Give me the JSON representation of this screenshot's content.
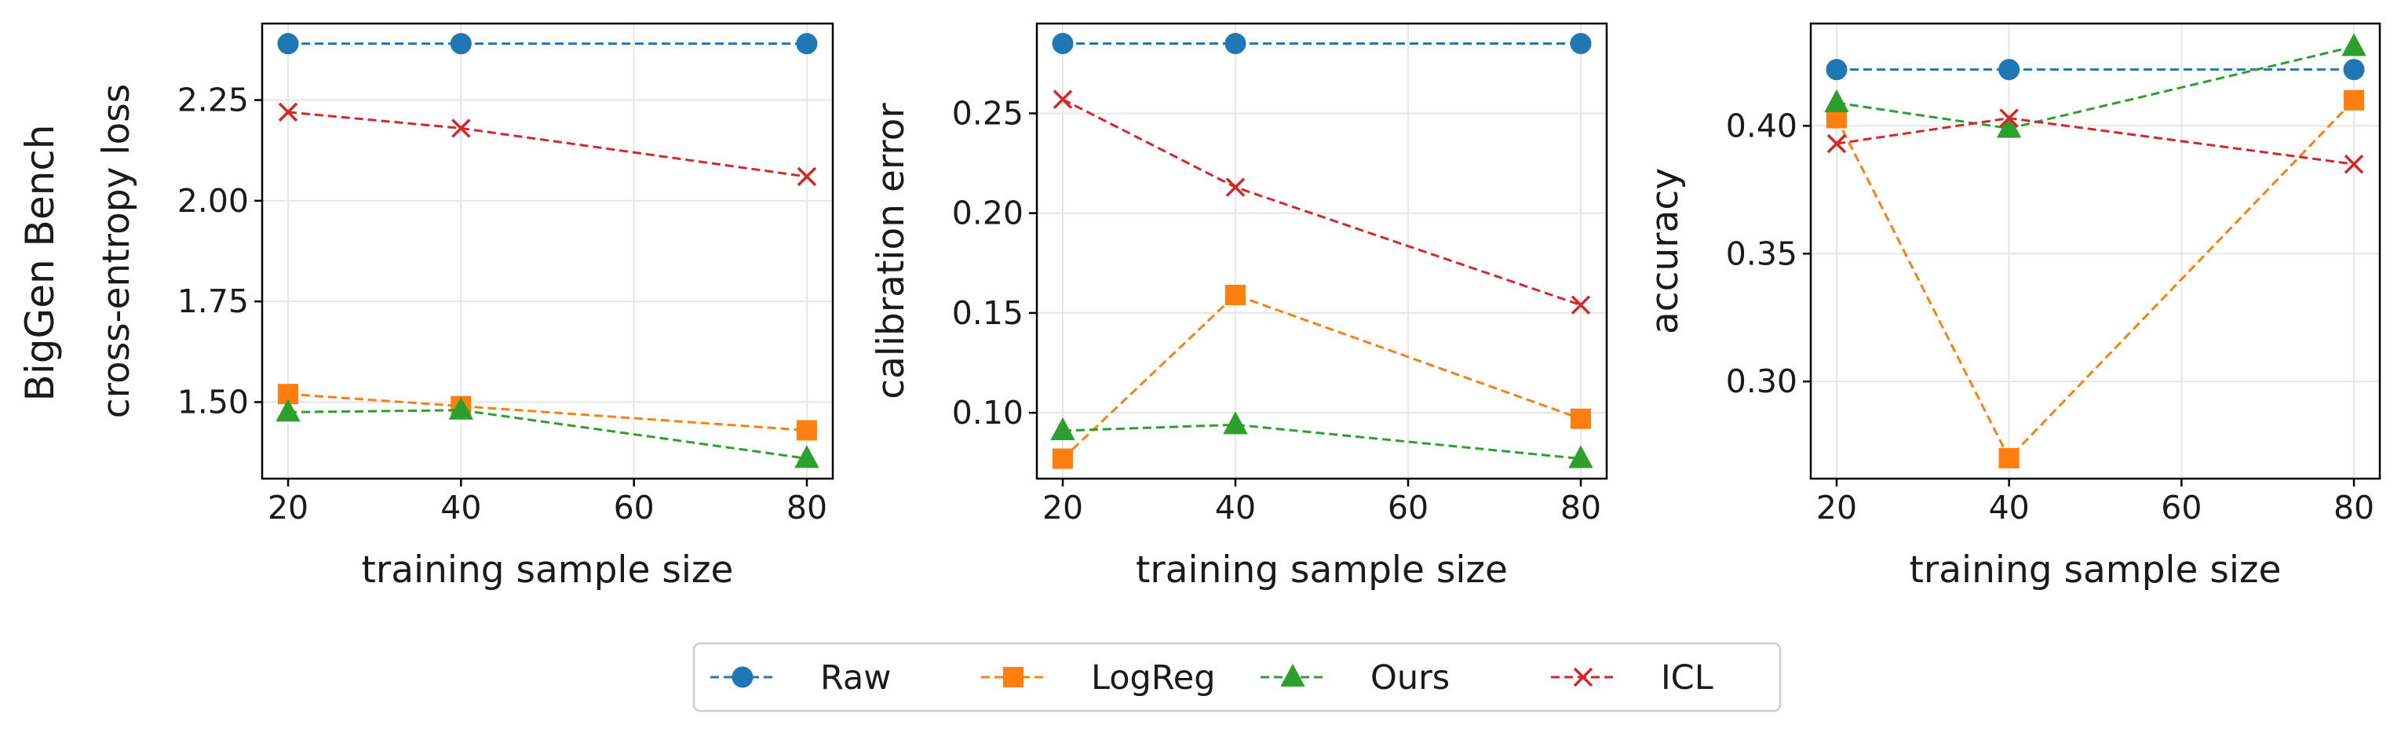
{
  "row_label": "BigGen Bench",
  "colors": {
    "Raw": "#1f77b4",
    "LogReg": "#ff7f0e",
    "Ours": "#2ca02c",
    "ICL": "#d62728"
  },
  "markers": {
    "Raw": "circle",
    "LogReg": "square",
    "Ours": "triangle",
    "ICL": "x"
  },
  "legend": {
    "placement": "bottom-center",
    "entries": [
      "Raw",
      "LogReg",
      "Ours",
      "ICL"
    ]
  },
  "chart_data": [
    {
      "type": "line",
      "xlabel": "training sample size",
      "ylabel": "cross-entropy loss",
      "x": [
        20,
        40,
        80
      ],
      "xlim": [
        17,
        83
      ],
      "ylim": [
        1.31,
        2.44
      ],
      "xticks": [
        20,
        40,
        60,
        80
      ],
      "yticks": [
        1.5,
        1.75,
        2.0,
        2.25
      ],
      "ytick_labels": [
        "1.50",
        "1.75",
        "2.00",
        "2.25"
      ],
      "grid": true,
      "series": [
        {
          "name": "Raw",
          "values": [
            2.39,
            2.39,
            2.39
          ]
        },
        {
          "name": "LogReg",
          "values": [
            1.52,
            1.49,
            1.43
          ]
        },
        {
          "name": "Ours",
          "values": [
            1.475,
            1.48,
            1.36
          ]
        },
        {
          "name": "ICL",
          "values": [
            2.22,
            2.18,
            2.06
          ]
        }
      ]
    },
    {
      "type": "line",
      "xlabel": "training sample size",
      "ylabel": "calibration error",
      "x": [
        20,
        40,
        80
      ],
      "xlim": [
        17,
        83
      ],
      "ylim": [
        0.067,
        0.295
      ],
      "xticks": [
        20,
        40,
        60,
        80
      ],
      "yticks": [
        0.1,
        0.15,
        0.2,
        0.25
      ],
      "ytick_labels": [
        "0.10",
        "0.15",
        "0.20",
        "0.25"
      ],
      "grid": true,
      "series": [
        {
          "name": "Raw",
          "values": [
            0.285,
            0.285,
            0.285
          ]
        },
        {
          "name": "LogReg",
          "values": [
            0.077,
            0.159,
            0.097
          ]
        },
        {
          "name": "Ours",
          "values": [
            0.091,
            0.094,
            0.077
          ]
        },
        {
          "name": "ICL",
          "values": [
            0.257,
            0.213,
            0.154
          ]
        }
      ]
    },
    {
      "type": "line",
      "xlabel": "training sample size",
      "ylabel": "accuracy",
      "x": [
        20,
        40,
        80
      ],
      "xlim": [
        17,
        83
      ],
      "ylim": [
        0.262,
        0.44
      ],
      "xticks": [
        20,
        40,
        60,
        80
      ],
      "yticks": [
        0.3,
        0.35,
        0.4
      ],
      "ytick_labels": [
        "0.30",
        "0.35",
        "0.40"
      ],
      "grid": true,
      "series": [
        {
          "name": "Raw",
          "values": [
            0.422,
            0.422,
            0.422
          ]
        },
        {
          "name": "LogReg",
          "values": [
            0.403,
            0.27,
            0.41
          ]
        },
        {
          "name": "Ours",
          "values": [
            0.409,
            0.399,
            0.431
          ]
        },
        {
          "name": "ICL",
          "values": [
            0.393,
            0.403,
            0.385
          ]
        }
      ]
    }
  ]
}
